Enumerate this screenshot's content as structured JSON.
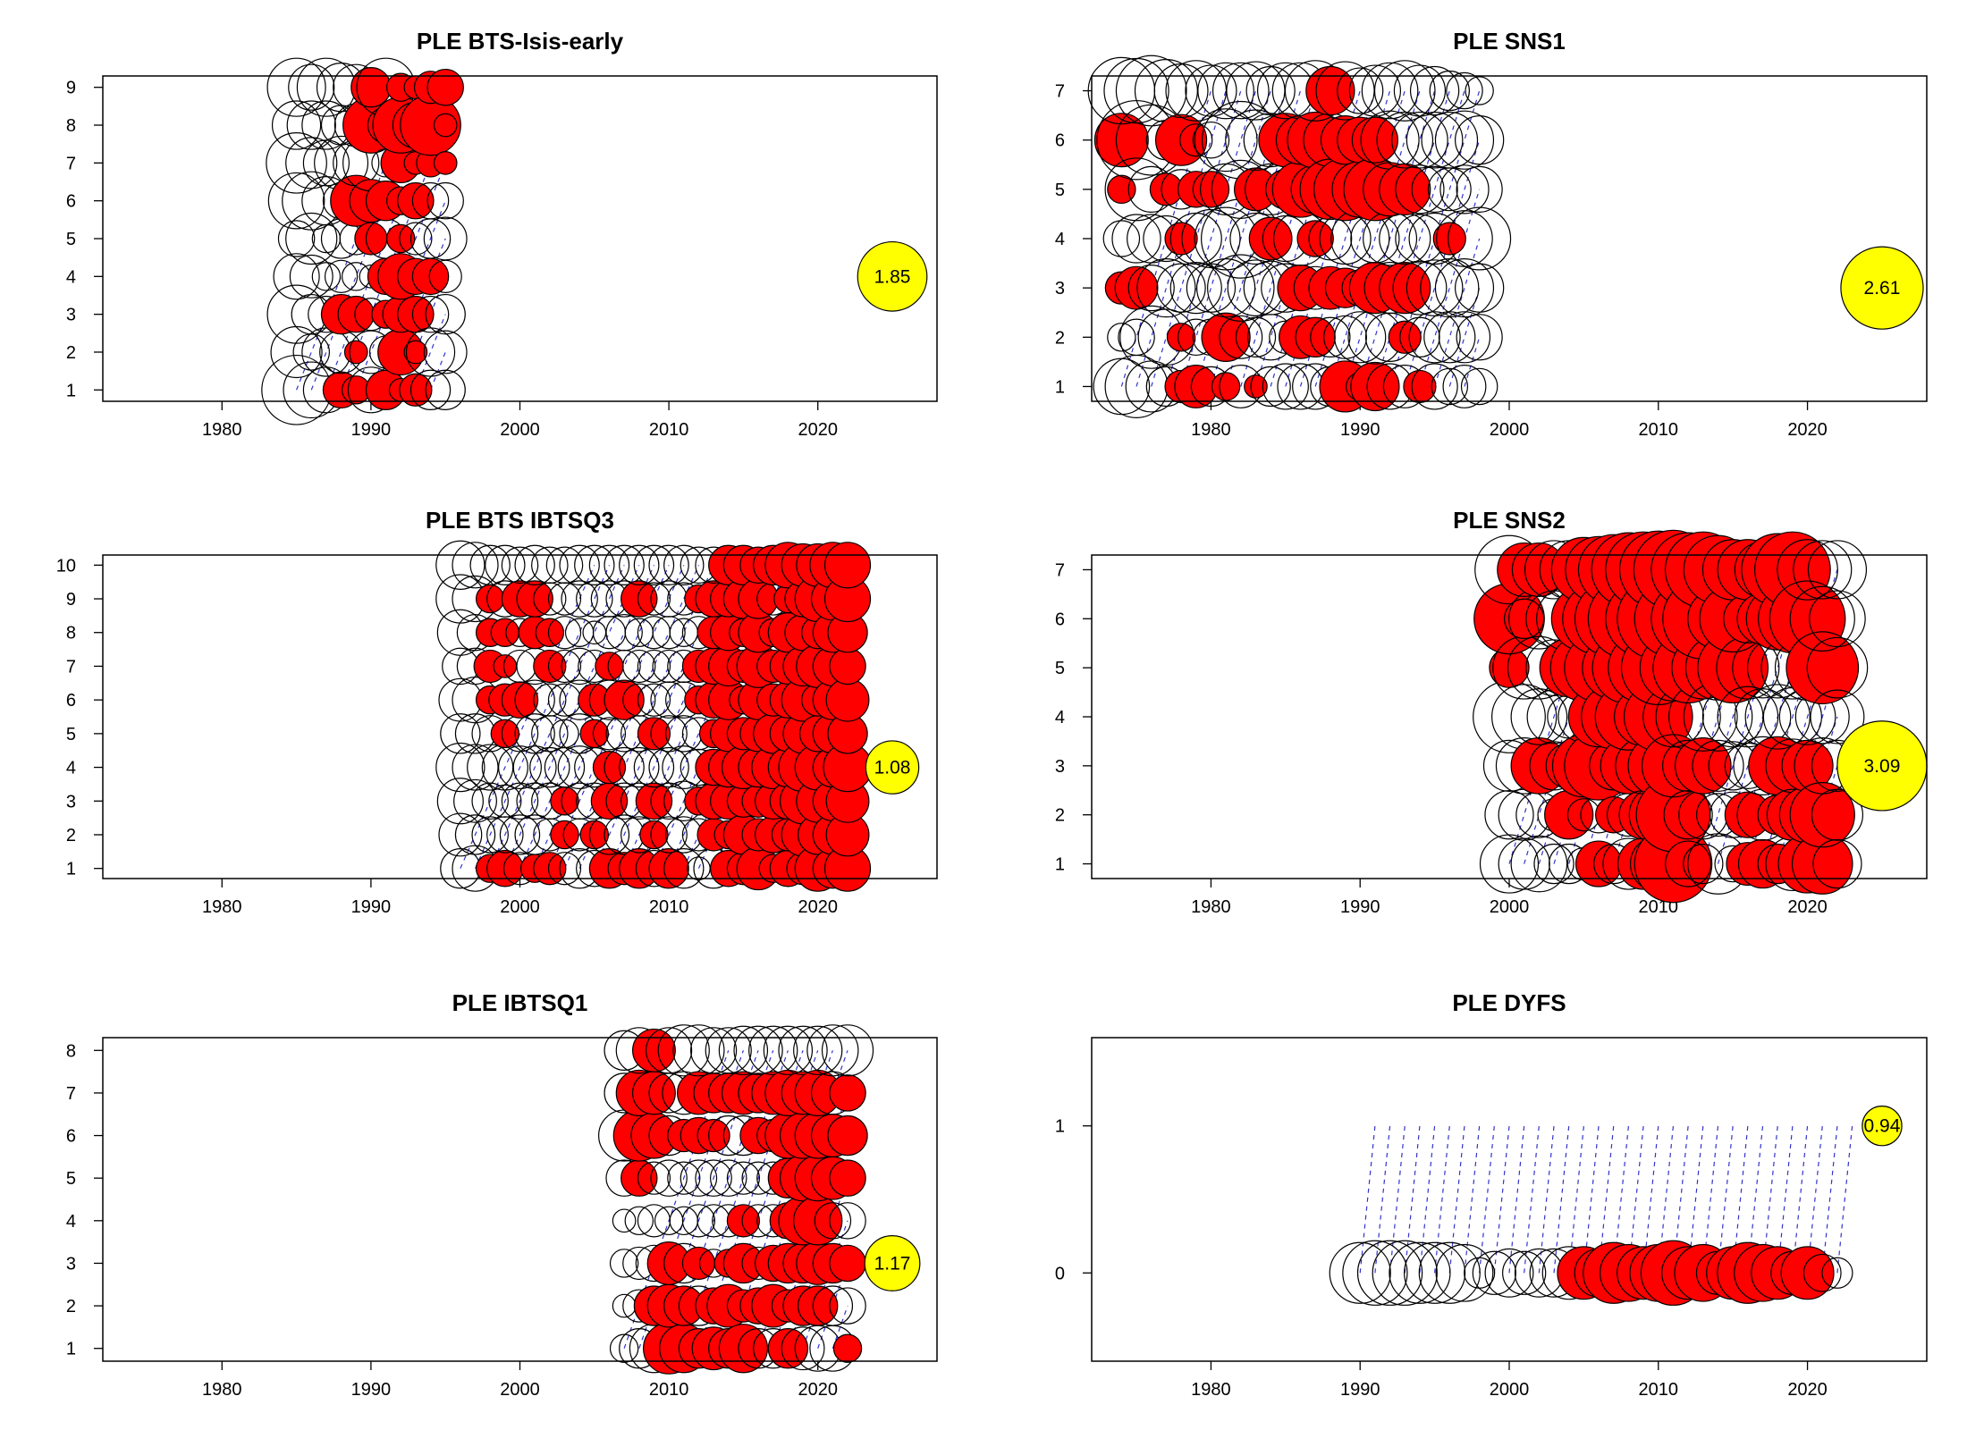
{
  "figure": {
    "title": ""
  },
  "chart_data": [
    {
      "type": "bubble",
      "title": "PLE BTS-Isis-early",
      "xlabel": "",
      "ylabel": "",
      "xlim": [
        1972,
        2028
      ],
      "x_ticks": [
        1980,
        1990,
        2000,
        2010,
        2020
      ],
      "y_ticks": [
        1,
        2,
        3,
        4,
        5,
        6,
        7,
        8,
        9
      ],
      "years": [
        1985,
        1995
      ],
      "ages": [
        1,
        9
      ],
      "max_bubble_label": "1.85",
      "max_bubble_year": 2025,
      "max_bubble_age": 4,
      "residuals": [
        [
          -1.85,
          -1.0,
          -1.3,
          -0.8,
          -0.5,
          -1.2,
          -1.4,
          -0.9,
          -1.3
        ],
        [
          -1.2,
          -0.5,
          -0.6,
          -0.7,
          -1.0,
          -1.3,
          -1.0,
          -0.9,
          -0.8
        ],
        [
          -0.8,
          -0.9,
          -0.5,
          -0.3,
          -0.3,
          -0.9,
          -0.8,
          -0.9,
          -1.3
        ],
        [
          0.5,
          -0.7,
          0.6,
          -0.4,
          -0.6,
          -0.5,
          -1.1,
          -0.6,
          -0.9
        ],
        [
          0.3,
          0.2,
          0.5,
          -0.3,
          -0.4,
          1.0,
          -0.8,
          -0.7,
          -0.8
        ],
        [
          -0.8,
          -0.7,
          -0.4,
          -0.2,
          0.4,
          0.7,
          -1.2,
          1.2,
          0.6
        ],
        [
          0.6,
          -0.4,
          0.3,
          0.5,
          -0.6,
          0.6,
          -0.3,
          0.5,
          -1.3
        ],
        [
          0.2,
          0.8,
          0.5,
          0.8,
          0.3,
          0.3,
          0.6,
          1.2,
          0.3
        ],
        [
          0.4,
          0.2,
          0.5,
          0.5,
          -0.4,
          0.5,
          0.2,
          0.8,
          0.2
        ],
        [
          -0.6,
          -0.9,
          -0.5,
          0.5,
          -0.6,
          -0.5,
          0.3,
          1.4,
          0.4
        ],
        [
          -0.6,
          -0.7,
          -0.6,
          -0.4,
          -0.7,
          -0.5,
          0.2,
          0.2,
          0.5
        ]
      ]
    },
    {
      "type": "bubble",
      "title": "PLE SNS1",
      "xlabel": "",
      "ylabel": "",
      "xlim": [
        1972,
        2028
      ],
      "x_ticks": [
        1980,
        1990,
        2000,
        2010,
        2020
      ],
      "y_ticks": [
        1,
        2,
        3,
        4,
        5,
        6,
        7
      ],
      "years": [
        1974,
        1998
      ],
      "ages": [
        1,
        7
      ],
      "max_bubble_label": "2.61",
      "max_bubble_year": 2025,
      "max_bubble_age": 3,
      "residuals": [
        [
          -1.2,
          -0.3,
          0.4,
          -0.5,
          0.3,
          1.1,
          -1.7
        ],
        [
          -1.5,
          -0.5,
          0.7,
          -0.9,
          -1.5,
          -2.4,
          -1.6
        ],
        [
          -1.0,
          -1.5,
          -0.8,
          -0.9,
          -0.8,
          -1.9,
          -1.9
        ],
        [
          -0.6,
          -1.2,
          -1.3,
          -0.8,
          0.4,
          -0.6,
          -1.5
        ],
        [
          0.4,
          0.3,
          -0.9,
          0.4,
          -0.6,
          1.0,
          -1.1
        ],
        [
          0.7,
          -0.5,
          -1.0,
          -1.0,
          0.5,
          -0.4,
          -1.4
        ],
        [
          -0.6,
          -0.5,
          -0.9,
          -1.3,
          0.5,
          -0.5,
          -1.0
        ],
        [
          0.3,
          0.9,
          -1.3,
          -1.5,
          -1.0,
          -1.5,
          -1.2
        ],
        [
          -0.7,
          -0.7,
          -1.7,
          -2.4,
          -1.3,
          -2.3,
          -1.2
        ],
        [
          0.2,
          -0.6,
          -1.2,
          -1.0,
          0.7,
          -1.4,
          -1.3
        ],
        [
          -0.6,
          -0.8,
          -1.1,
          0.7,
          -1.0,
          -1.1,
          -0.9
        ],
        [
          -0.8,
          -0.4,
          -0.9,
          -0.8,
          0.6,
          1.1,
          -1.2
        ],
        [
          -0.8,
          0.7,
          0.8,
          -1.1,
          1.2,
          0.9,
          -1.2
        ],
        [
          -0.8,
          0.6,
          -0.7,
          0.5,
          -0.9,
          1.2,
          -1.4
        ],
        [
          -0.6,
          -0.6,
          0.7,
          -0.7,
          1.4,
          -1.1,
          0.9
        ],
        [
          1.0,
          -0.7,
          0.6,
          -1.0,
          1.5,
          0.9,
          -1.3
        ],
        [
          0.3,
          -1.0,
          -0.5,
          -1.3,
          1.2,
          0.8,
          -0.8
        ],
        [
          0.9,
          -1.1,
          1.0,
          -0.9,
          1.5,
          0.8,
          -1.0
        ],
        [
          -0.8,
          -0.9,
          -1.0,
          -1.1,
          1.1,
          -1.3,
          -1.2
        ],
        [
          -0.7,
          0.4,
          1.0,
          -1.0,
          1.0,
          -1.2,
          -1.4
        ],
        [
          0.4,
          -0.6,
          -1.1,
          -0.9,
          -0.9,
          -1.2,
          -1.0
        ],
        [
          -0.8,
          -1.0,
          -1.2,
          -1.0,
          -0.8,
          -1.2,
          -0.9
        ],
        [
          -0.5,
          -1.0,
          -1.3,
          0.4,
          -0.7,
          -1.2,
          -0.6
        ],
        [
          -0.7,
          -1.0,
          -1.3,
          -1.2,
          -0.9,
          -1.3,
          -0.5
        ],
        [
          -0.5,
          -0.8,
          -0.9,
          -1.5,
          -0.8,
          -0.9,
          -0.3
        ]
      ]
    },
    {
      "type": "bubble",
      "title": "PLE BTS IBTSQ3",
      "xlabel": "",
      "ylabel": "",
      "xlim": [
        1972,
        2028
      ],
      "x_ticks": [
        1980,
        1990,
        2000,
        2010,
        2020
      ],
      "y_ticks": [
        1,
        2,
        3,
        4,
        5,
        6,
        7,
        8,
        9,
        10
      ],
      "years": [
        1996,
        2022
      ],
      "ages": [
        1,
        10
      ],
      "max_bubble_label": "1.08",
      "max_bubble_year": 2025,
      "max_bubble_age": 4,
      "residuals": [
        [
          -0.6,
          -0.7,
          -0.8,
          -0.9,
          -0.6,
          -0.7,
          -0.5,
          -0.8,
          -0.9,
          -0.9
        ],
        [
          -0.8,
          -0.6,
          -0.7,
          -0.8,
          -0.6,
          -0.8,
          -0.5,
          -0.5,
          -0.8,
          -0.8
        ],
        [
          0.3,
          -0.5,
          -0.5,
          -0.8,
          -0.5,
          0.3,
          0.4,
          0.3,
          0.3,
          -0.6
        ],
        [
          0.5,
          -0.5,
          -0.4,
          -0.8,
          0.3,
          0.4,
          0.2,
          0.3,
          -0.5,
          -0.6
        ],
        [
          -0.4,
          -0.6,
          -0.5,
          -0.7,
          -0.5,
          0.5,
          -0.4,
          -0.3,
          0.5,
          -0.5
        ],
        [
          0.3,
          -0.6,
          -0.5,
          -0.7,
          -0.6,
          -0.6,
          -0.5,
          0.4,
          0.5,
          -0.6
        ],
        [
          0.4,
          -0.4,
          -0.5,
          -0.6,
          -0.5,
          -0.4,
          0.4,
          0.3,
          -0.4,
          -0.5
        ],
        [
          -0.4,
          0.3,
          0.3,
          -0.6,
          -0.3,
          -0.4,
          -0.4,
          -0.4,
          -0.4,
          -0.5
        ],
        [
          -0.6,
          -0.4,
          -0.5,
          -0.7,
          -0.6,
          -0.6,
          -0.5,
          -0.3,
          -0.5,
          -0.6
        ],
        [
          -0.5,
          0.3,
          -0.5,
          -0.6,
          0.3,
          0.4,
          -0.4,
          -0.2,
          -0.5,
          -0.6
        ],
        [
          0.6,
          -0.6,
          0.5,
          0.4,
          -0.4,
          -0.6,
          0.3,
          -0.4,
          -0.5,
          -0.6
        ],
        [
          0.4,
          -0.6,
          -0.5,
          -0.6,
          -0.5,
          0.6,
          -0.4,
          -0.5,
          -0.5,
          -0.6
        ],
        [
          0.6,
          -0.5,
          -0.5,
          -0.6,
          -0.5,
          -0.4,
          -0.4,
          -0.3,
          0.5,
          -0.6
        ],
        [
          -0.5,
          0.3,
          0.5,
          -0.6,
          0.4,
          -0.4,
          -0.4,
          -0.4,
          -0.4,
          -0.6
        ],
        [
          0.6,
          -0.5,
          -0.5,
          -0.6,
          -0.5,
          -0.5,
          -0.4,
          -0.4,
          -0.5,
          -0.6
        ],
        [
          -0.6,
          -0.5,
          -0.6,
          -0.7,
          -0.5,
          -0.5,
          -0.4,
          -0.3,
          -0.4,
          -0.6
        ],
        [
          -0.2,
          -0.4,
          0.3,
          -0.5,
          -0.4,
          0.3,
          0.4,
          -0.4,
          0.3,
          -0.5
        ],
        [
          -0.6,
          0.4,
          0.5,
          0.5,
          0.3,
          0.5,
          0.5,
          0.4,
          0.5,
          -0.5
        ],
        [
          0.5,
          0.3,
          0.5,
          0.6,
          0.5,
          0.6,
          0.6,
          0.5,
          0.5,
          0.6
        ],
        [
          0.4,
          0.6,
          0.4,
          0.7,
          0.4,
          0.3,
          0.4,
          0.3,
          0.6,
          0.6
        ],
        [
          0.7,
          0.4,
          0.4,
          0.6,
          0.5,
          0.6,
          0.7,
          0.6,
          0.6,
          0.5
        ],
        [
          0.3,
          0.5,
          0.5,
          0.7,
          0.6,
          0.4,
          0.4,
          0.3,
          -0.4,
          0.6
        ],
        [
          0.5,
          0.4,
          0.5,
          0.6,
          0.5,
          0.5,
          0.5,
          0.6,
          0.3,
          0.8
        ],
        [
          0.4,
          0.7,
          0.8,
          0.9,
          0.6,
          0.7,
          0.6,
          0.5,
          0.5,
          0.7
        ],
        [
          0.8,
          0.6,
          0.7,
          0.8,
          0.5,
          0.4,
          0.7,
          0.4,
          0.8,
          0.7
        ],
        [
          0.6,
          0.6,
          0.6,
          0.6,
          0.6,
          0.6,
          0.6,
          0.6,
          0.7,
          0.8
        ],
        [
          0.8,
          0.7,
          0.7,
          0.9,
          0.6,
          0.7,
          0.5,
          0.6,
          0.8,
          0.8
        ]
      ]
    },
    {
      "type": "bubble",
      "title": "PLE SNS2",
      "xlabel": "",
      "ylabel": "",
      "xlim": [
        1972,
        2028
      ],
      "x_ticks": [
        1980,
        1990,
        2000,
        2010,
        2020
      ],
      "y_ticks": [
        1,
        2,
        3,
        4,
        5,
        6,
        7
      ],
      "years": [
        2000,
        2022
      ],
      "ages": [
        1,
        7
      ],
      "max_bubble_label": "3.09",
      "max_bubble_year": 2025,
      "max_bubble_age": 3,
      "residuals": [
        [
          -1.3,
          -0.9,
          -1.0,
          -2.0,
          0.6,
          1.9,
          -1.8
        ],
        [
          -1.0,
          -1.0,
          -1.2,
          -1.6,
          -1.5,
          0.6,
          1.1
        ],
        [
          -1.2,
          -0.8,
          1.2,
          -1.2,
          -1.5,
          -1.4,
          1.1
        ],
        [
          -0.6,
          -0.4,
          -0.9,
          -1.1,
          -1.2,
          -1.2,
          -1.3
        ],
        [
          -0.6,
          0.9,
          -0.8,
          -0.7,
          1.3,
          -1.6,
          -1.3
        ],
        [
          -0.4,
          -0.4,
          1.5,
          -1.0,
          1.7,
          1.6,
          1.6
        ],
        [
          0.8,
          -0.5,
          1.8,
          1.4,
          1.8,
          2.0,
          1.7
        ],
        [
          -0.6,
          0.5,
          -0.9,
          1.6,
          1.5,
          2.3,
          1.9
        ],
        [
          -1.0,
          -0.7,
          1.2,
          1.7,
          2.0,
          2.5,
          2.1
        ],
        [
          1.0,
          0.9,
          -1.2,
          1.3,
          1.9,
          2.2,
          2.2
        ],
        [
          -1.2,
          -1.3,
          1.4,
          1.8,
          2.1,
          2.6,
          2.3
        ],
        [
          2.3,
          2.1,
          1.5,
          -1.4,
          1.7,
          2.3,
          2.4
        ],
        [
          0.8,
          -0.9,
          -1.0,
          -1.6,
          1.9,
          2.1,
          2.1
        ],
        [
          -0.6,
          -0.9,
          1.2,
          -1.8,
          1.5,
          2.5,
          2.2
        ],
        [
          -1.4,
          -0.7,
          -1.0,
          -1.8,
          -1.6,
          1.4,
          1.8
        ],
        [
          -0.5,
          -0.8,
          -0.9,
          -1.4,
          1.9,
          1.7,
          1.4
        ],
        [
          0.7,
          0.8,
          -0.8,
          -1.4,
          -1.5,
          0.9,
          1.4
        ],
        [
          0.9,
          -1.0,
          -1.3,
          -1.2,
          -1.4,
          1.0,
          -1.2
        ],
        [
          0.6,
          0.6,
          1.3,
          -1.6,
          -1.4,
          1.5,
          2.0
        ],
        [
          -1.1,
          1.0,
          -1.1,
          -1.3,
          -1.5,
          1.8,
          2.2
        ],
        [
          1.3,
          1.2,
          1.0,
          -1.2,
          -1.6,
          2.2,
          -1.4
        ],
        [
          1.4,
          1.6,
          -1.2,
          -1.1,
          2.0,
          -1.6,
          -1.3
        ],
        [
          -0.9,
          -1.0,
          -1.0,
          -1.1,
          -1.4,
          -1.2,
          -1.3
        ]
      ]
    },
    {
      "type": "bubble",
      "title": "PLE IBTSQ1",
      "xlabel": "",
      "ylabel": "",
      "xlim": [
        1972,
        2028
      ],
      "x_ticks": [
        1980,
        1990,
        2000,
        2010,
        2020
      ],
      "y_ticks": [
        1,
        2,
        3,
        4,
        5,
        6,
        7,
        8
      ],
      "years": [
        2007,
        2022
      ],
      "ages": [
        1,
        8
      ],
      "max_bubble_label": "1.17",
      "max_bubble_year": 2025,
      "max_bubble_age": 3,
      "residuals": [
        [
          -0.3,
          -0.2,
          -0.3,
          -0.2,
          -0.5,
          -1.0,
          -0.6,
          -0.6
        ],
        [
          -0.6,
          -0.4,
          -0.4,
          -0.3,
          0.5,
          1.0,
          0.8,
          -0.8
        ],
        [
          -0.9,
          0.6,
          -0.5,
          -0.4,
          -0.4,
          0.8,
          0.7,
          0.7
        ],
        [
          1.0,
          0.7,
          0.7,
          -0.3,
          -0.5,
          -0.6,
          -0.6,
          -0.8
        ],
        [
          0.9,
          0.6,
          -0.6,
          -0.3,
          -0.4,
          0.4,
          -0.7,
          -1.0
        ],
        [
          0.6,
          -0.6,
          0.4,
          -0.4,
          -0.5,
          0.5,
          0.7,
          -1.0
        ],
        [
          0.7,
          0.5,
          -0.3,
          -0.4,
          -0.5,
          0.4,
          0.6,
          -0.8
        ],
        [
          0.6,
          0.7,
          0.3,
          -0.4,
          -0.5,
          -0.6,
          0.6,
          -0.8
        ],
        [
          0.9,
          0.4,
          0.6,
          0.4,
          -0.4,
          -0.6,
          0.7,
          -0.9
        ],
        [
          -0.6,
          0.5,
          -0.4,
          -0.4,
          -0.4,
          0.5,
          0.6,
          -0.9
        ],
        [
          -0.6,
          0.7,
          0.5,
          -0.4,
          -0.4,
          0.4,
          0.7,
          -0.9
        ],
        [
          0.6,
          0.4,
          0.6,
          0.5,
          0.6,
          0.8,
          0.8,
          -0.9
        ],
        [
          -0.7,
          0.6,
          0.6,
          0.9,
          0.8,
          0.8,
          0.7,
          -0.9
        ],
        [
          -0.8,
          0.6,
          0.7,
          0.9,
          0.8,
          0.8,
          0.8,
          -0.9
        ],
        [
          -0.8,
          -0.6,
          0.6,
          -0.5,
          0.7,
          0.7,
          -0.7,
          -1.0
        ],
        [
          0.3,
          -0.5,
          0.5,
          -0.5,
          0.5,
          0.6,
          0.5,
          -1.0
        ]
      ]
    },
    {
      "type": "bubble",
      "title": "PLE DYFS",
      "xlabel": "",
      "ylabel": "",
      "xlim": [
        1972,
        2028
      ],
      "x_ticks": [
        1980,
        1990,
        2000,
        2010,
        2020
      ],
      "y_ticks": [
        0,
        1
      ],
      "years": [
        1990,
        2022
      ],
      "ages": [
        0,
        0
      ],
      "age_axis": [
        -0.6,
        1.6
      ],
      "max_bubble_label": "0.94",
      "max_bubble_year": 2025,
      "max_bubble_age": 1,
      "residuals": [
        [
          -0.8
        ],
        [
          -0.9
        ],
        [
          -0.9
        ],
        [
          -0.9
        ],
        [
          -0.8
        ],
        [
          -0.8
        ],
        [
          -0.8
        ],
        [
          -0.7
        ],
        [
          -0.2
        ],
        [
          -0.4
        ],
        [
          -0.5
        ],
        [
          -0.4
        ],
        [
          -0.5
        ],
        [
          -0.5
        ],
        [
          -0.6
        ],
        [
          0.6
        ],
        [
          0.5
        ],
        [
          0.8
        ],
        [
          0.7
        ],
        [
          0.6
        ],
        [
          0.7
        ],
        [
          0.9
        ],
        [
          0.6
        ],
        [
          0.7
        ],
        [
          0.4
        ],
        [
          0.6
        ],
        [
          0.8
        ],
        [
          0.7
        ],
        [
          0.6
        ],
        [
          0.4
        ],
        [
          0.6
        ],
        [
          -0.3
        ],
        [
          -0.2
        ]
      ]
    }
  ]
}
